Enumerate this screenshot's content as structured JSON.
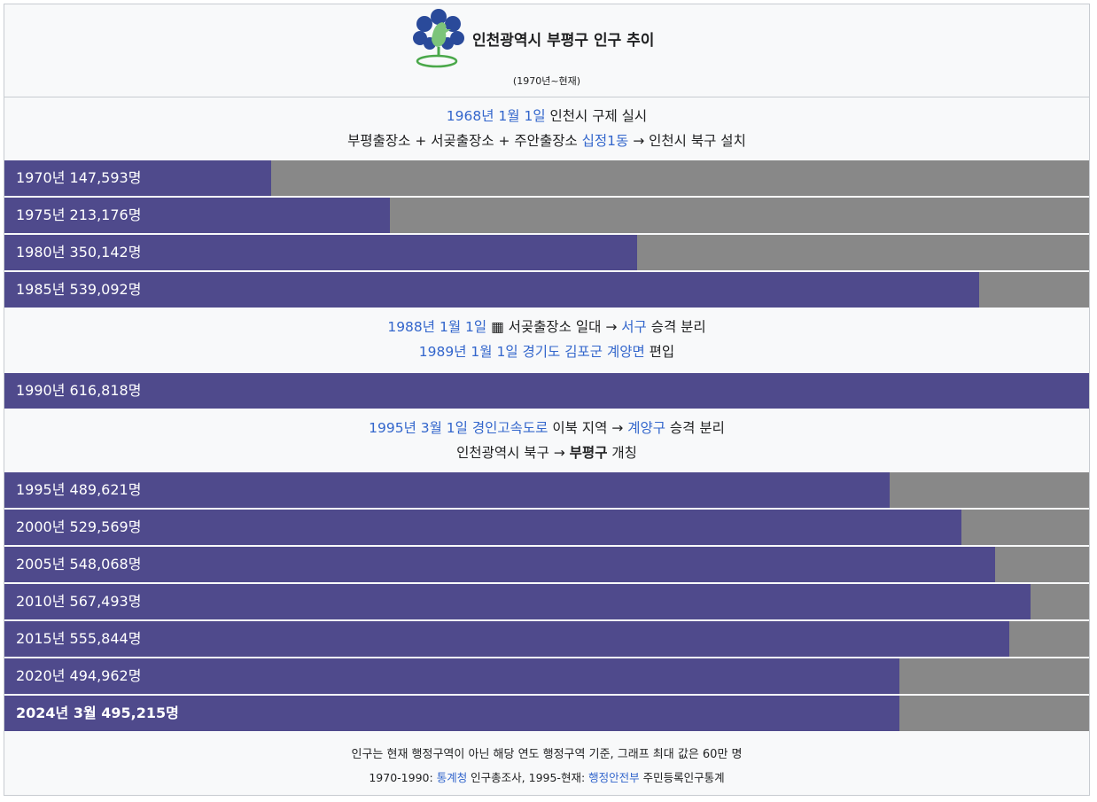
{
  "header": {
    "title": "인천광역시 부평구 인구 추이",
    "subtitle": "(1970년~현재)",
    "emblem_icon": "bupyeong-emblem-icon"
  },
  "events": [
    {
      "lines": [
        [
          {
            "t": "1968년 1월 1일",
            "link": true
          },
          {
            "t": " 인천시 구제 실시",
            "link": false
          }
        ],
        [
          {
            "t": "부평출장소 + 서곶출장소 + 주안출장소 ",
            "link": false
          },
          {
            "t": "십정1동",
            "link": true
          },
          {
            "t": " → 인천시 북구 설치",
            "link": false
          }
        ]
      ]
    },
    {
      "lines": [
        [
          {
            "t": "1988년 1월 1일",
            "link": true
          },
          {
            "t": " ▦ 서곶출장소 일대 → ",
            "link": false
          },
          {
            "t": "서구",
            "link": true
          },
          {
            "t": " 승격 분리",
            "link": false
          }
        ],
        [
          {
            "t": "1989년 1월 1일",
            "link": true
          },
          {
            "t": " ",
            "link": false
          },
          {
            "t": "경기도",
            "link": true
          },
          {
            "t": " ",
            "link": false
          },
          {
            "t": "김포군",
            "link": true
          },
          {
            "t": " ",
            "link": false
          },
          {
            "t": "계양면",
            "link": true
          },
          {
            "t": " 편입",
            "link": false
          }
        ]
      ]
    },
    {
      "lines": [
        [
          {
            "t": "1995년 3월 1일",
            "link": true
          },
          {
            "t": " ",
            "link": false
          },
          {
            "t": "경인고속도로",
            "link": true
          },
          {
            "t": " 이북 지역 → ",
            "link": false
          },
          {
            "t": "계양구",
            "link": true
          },
          {
            "t": " 승격 분리",
            "link": false
          }
        ],
        [
          {
            "t": "인천광역시 북구 → ",
            "link": false
          },
          {
            "t": "부평구",
            "link": false,
            "bold": true
          },
          {
            "t": " 개칭",
            "link": false
          }
        ]
      ]
    }
  ],
  "chart_data": {
    "type": "bar",
    "orientation": "horizontal",
    "max": 600000,
    "bar_color": "#4f4a8c",
    "track_color": "#888888",
    "bars": [
      {
        "label": "1970년 147,593명",
        "year": "1970",
        "value": 147593
      },
      {
        "label": "1975년 213,176명",
        "year": "1975",
        "value": 213176
      },
      {
        "label": "1980년 350,142명",
        "year": "1980",
        "value": 350142
      },
      {
        "label": "1985년 539,092명",
        "year": "1985",
        "value": 539092
      },
      {
        "label": "1990년 616,818명",
        "year": "1990",
        "value": 616818
      },
      {
        "label": "1995년 489,621명",
        "year": "1995",
        "value": 489621
      },
      {
        "label": "2000년 529,569명",
        "year": "2000",
        "value": 529569
      },
      {
        "label": "2005년 548,068명",
        "year": "2005",
        "value": 548068
      },
      {
        "label": "2010년 567,493명",
        "year": "2010",
        "value": 567493
      },
      {
        "label": "2015년 555,844명",
        "year": "2015",
        "value": 555844
      },
      {
        "label": "2020년 494,962명",
        "year": "2020",
        "value": 494962
      },
      {
        "label": "2024년 3월 495,215명",
        "year": "2024년 3월",
        "value": 495215,
        "bold": true
      }
    ]
  },
  "footer": {
    "note": "인구는 현재 행정구역이 아닌 해당 연도 행정구역 기준, 그래프 최대 값은 60만 명",
    "source": [
      {
        "t": "1970-1990: ",
        "link": false
      },
      {
        "t": "통계청",
        "link": true
      },
      {
        "t": " 인구총조사, 1995-현재: ",
        "link": false
      },
      {
        "t": "행정안전부",
        "link": true
      },
      {
        "t": " 주민등록인구통계",
        "link": false
      }
    ]
  }
}
